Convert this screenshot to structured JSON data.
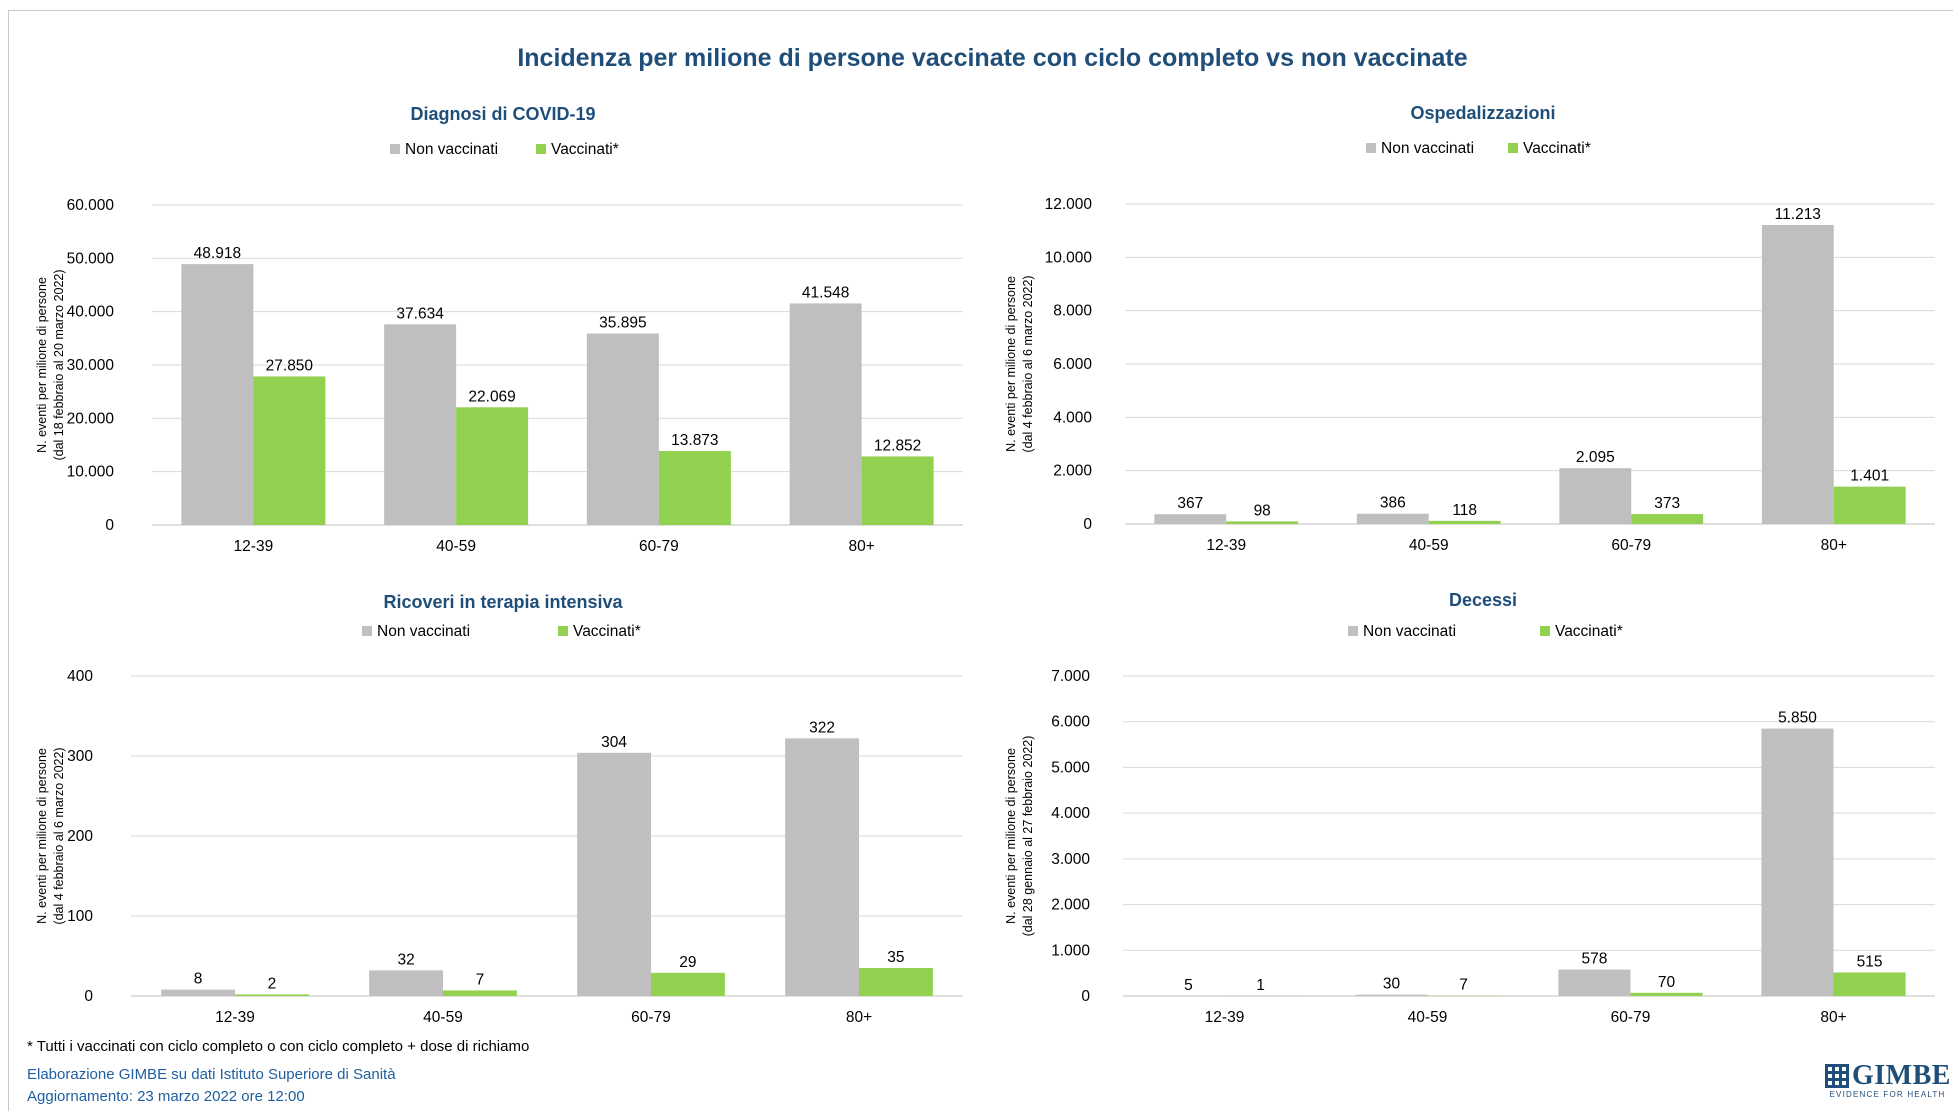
{
  "title": "Incidenza per milione di persone vaccinate con ciclo completo vs non vaccinate",
  "colors": {
    "non_vaccinated": "#bfbfbf",
    "vaccinated": "#92d050",
    "title": "#1f4e79",
    "grid": "#d9d9d9"
  },
  "chart_data": [
    {
      "type": "bar",
      "title": "Diagnosi di COVID-19",
      "ylabel": [
        "N. eventi per milione di persone",
        "(dal 18  febbraio al 20  marzo 2022)"
      ],
      "categories": [
        "12-39",
        "40-59",
        "60-79",
        "80+"
      ],
      "ylim": [
        0,
        60000
      ],
      "yticks": [
        "0",
        "10.000",
        "20.000",
        "30.000",
        "40.000",
        "50.000",
        "60.000"
      ],
      "grid": true,
      "legend": "top-center",
      "series": [
        {
          "name": "Non vaccinati",
          "values": [
            48918,
            37634,
            35895,
            41548
          ],
          "labels": [
            "48.918",
            "37.634",
            "35.895",
            "41.548"
          ]
        },
        {
          "name": "Vaccinati*",
          "values": [
            27850,
            22069,
            13873,
            12852
          ],
          "labels": [
            "27.850",
            "22.069",
            "13.873",
            "12.852"
          ]
        }
      ]
    },
    {
      "type": "bar",
      "title": "Ospedalizzazioni",
      "ylabel": [
        "N. eventi per milione di persone",
        "(dal 4  febbraio al 6  marzo 2022)"
      ],
      "categories": [
        "12-39",
        "40-59",
        "60-79",
        "80+"
      ],
      "ylim": [
        0,
        12000
      ],
      "yticks": [
        "0",
        "2.000",
        "4.000",
        "6.000",
        "8.000",
        "10.000",
        "12.000"
      ],
      "grid": true,
      "legend": "top-center",
      "series": [
        {
          "name": "Non vaccinati",
          "values": [
            367,
            386,
            2095,
            11213
          ],
          "labels": [
            "367",
            "386",
            "2.095",
            "11.213"
          ]
        },
        {
          "name": "Vaccinati*",
          "values": [
            98,
            118,
            373,
            1401
          ],
          "labels": [
            "98",
            "118",
            "373",
            "1.401"
          ]
        }
      ]
    },
    {
      "type": "bar",
      "title": "Ricoveri in terapia intensiva",
      "ylabel": [
        "N. eventi per milione di persone",
        "(dal 4  febbraio al 6  marzo 2022)"
      ],
      "categories": [
        "12-39",
        "40-59",
        "60-79",
        "80+"
      ],
      "ylim": [
        0,
        400
      ],
      "yticks": [
        "0",
        "100",
        "200",
        "300",
        "400"
      ],
      "grid": true,
      "legend": "top-center",
      "series": [
        {
          "name": "Non vaccinati",
          "values": [
            8,
            32,
            304,
            322
          ],
          "labels": [
            "8",
            "32",
            "304",
            "322"
          ]
        },
        {
          "name": "Vaccinati*",
          "values": [
            2,
            7,
            29,
            35
          ],
          "labels": [
            "2",
            "7",
            "29",
            "35"
          ]
        }
      ]
    },
    {
      "type": "bar",
      "title": "Decessi",
      "ylabel": [
        "N. eventi per milione di persone",
        "(dal 28  gennaio al 27  febbraio 2022)"
      ],
      "categories": [
        "12-39",
        "40-59",
        "60-79",
        "80+"
      ],
      "ylim": [
        0,
        7000
      ],
      "yticks": [
        "0",
        "1.000",
        "2.000",
        "3.000",
        "4.000",
        "5.000",
        "6.000",
        "7.000"
      ],
      "grid": true,
      "legend": "top-center",
      "series": [
        {
          "name": "Non vaccinati",
          "values": [
            5,
            30,
            578,
            5850
          ],
          "labels": [
            "5",
            "30",
            "578",
            "5.850"
          ]
        },
        {
          "name": "Vaccinati*",
          "values": [
            1,
            7,
            70,
            515
          ],
          "labels": [
            "1",
            "7",
            "70",
            "515"
          ]
        }
      ]
    }
  ],
  "footnote": "* Tutti i vaccinati con ciclo completo o con ciclo completo +  dose di richiamo",
  "credit_line_1": "Elaborazione GIMBE su dati Istituto Superiore di Sanità",
  "credit_line_2": "Aggiornamento: 23 marzo 2022 ore 12:00",
  "logo": {
    "name": "GIMBE",
    "tagline": "EVIDENCE FOR HEALTH"
  }
}
